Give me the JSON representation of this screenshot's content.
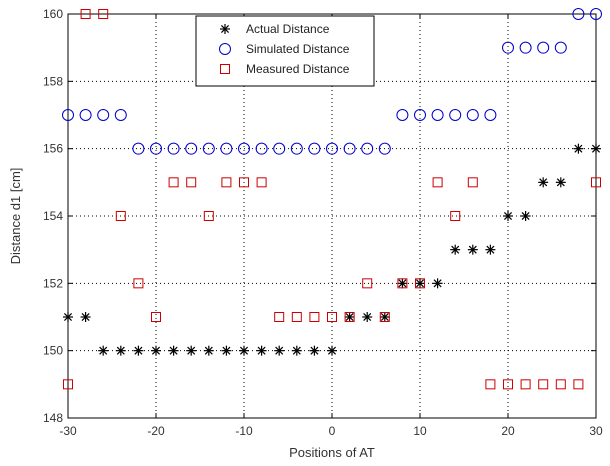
{
  "chart_data": {
    "type": "scatter",
    "xlabel": "Positions of AT",
    "ylabel": "Distance d1 [cm]",
    "xlim": [
      -30,
      30
    ],
    "ylim": [
      148,
      160
    ],
    "xticks": [
      -30,
      -20,
      -10,
      0,
      10,
      20,
      30
    ],
    "yticks": [
      148,
      150,
      152,
      154,
      156,
      158,
      160
    ],
    "grid": true,
    "legend_position": "top-center",
    "series": [
      {
        "name": "Actual Distance",
        "marker": "asterisk",
        "color": "#000000",
        "points": [
          [
            -30,
            151
          ],
          [
            -28,
            151
          ],
          [
            -26,
            150
          ],
          [
            -24,
            150
          ],
          [
            -22,
            150
          ],
          [
            -20,
            150
          ],
          [
            -18,
            150
          ],
          [
            -16,
            150
          ],
          [
            -14,
            150
          ],
          [
            -12,
            150
          ],
          [
            -10,
            150
          ],
          [
            -8,
            150
          ],
          [
            -6,
            150
          ],
          [
            -4,
            150
          ],
          [
            -2,
            150
          ],
          [
            0,
            150
          ],
          [
            2,
            151
          ],
          [
            4,
            151
          ],
          [
            6,
            151
          ],
          [
            8,
            152
          ],
          [
            10,
            152
          ],
          [
            12,
            152
          ],
          [
            14,
            153
          ],
          [
            16,
            153
          ],
          [
            18,
            153
          ],
          [
            20,
            154
          ],
          [
            22,
            154
          ],
          [
            24,
            155
          ],
          [
            26,
            155
          ],
          [
            28,
            156
          ],
          [
            30,
            156
          ]
        ]
      },
      {
        "name": "Simulated Distance",
        "marker": "circle",
        "color": "#0000cc",
        "points": [
          [
            -30,
            157
          ],
          [
            -28,
            157
          ],
          [
            -26,
            157
          ],
          [
            -24,
            157
          ],
          [
            -22,
            156
          ],
          [
            -20,
            156
          ],
          [
            -18,
            156
          ],
          [
            -16,
            156
          ],
          [
            -14,
            156
          ],
          [
            -12,
            156
          ],
          [
            -10,
            156
          ],
          [
            -8,
            156
          ],
          [
            -6,
            156
          ],
          [
            -4,
            156
          ],
          [
            -2,
            156
          ],
          [
            0,
            156
          ],
          [
            2,
            156
          ],
          [
            4,
            156
          ],
          [
            6,
            156
          ],
          [
            8,
            157
          ],
          [
            10,
            157
          ],
          [
            12,
            157
          ],
          [
            14,
            157
          ],
          [
            16,
            157
          ],
          [
            18,
            157
          ],
          [
            20,
            159
          ],
          [
            22,
            159
          ],
          [
            24,
            159
          ],
          [
            26,
            159
          ],
          [
            28,
            160
          ],
          [
            30,
            160
          ]
        ]
      },
      {
        "name": "Measured Distance",
        "marker": "square",
        "color": "#cc0000",
        "points": [
          [
            -30,
            149
          ],
          [
            -28,
            160
          ],
          [
            -26,
            160
          ],
          [
            -24,
            154
          ],
          [
            -22,
            152
          ],
          [
            -20,
            151
          ],
          [
            -18,
            155
          ],
          [
            -16,
            155
          ],
          [
            -14,
            154
          ],
          [
            -12,
            155
          ],
          [
            -10,
            155
          ],
          [
            -8,
            155
          ],
          [
            -6,
            151
          ],
          [
            -4,
            151
          ],
          [
            -2,
            151
          ],
          [
            0,
            151
          ],
          [
            2,
            151
          ],
          [
            4,
            152
          ],
          [
            6,
            151
          ],
          [
            8,
            152
          ],
          [
            10,
            152
          ],
          [
            12,
            155
          ],
          [
            14,
            154
          ],
          [
            16,
            155
          ],
          [
            18,
            149
          ],
          [
            20,
            149
          ],
          [
            22,
            149
          ],
          [
            24,
            149
          ],
          [
            26,
            149
          ],
          [
            28,
            149
          ],
          [
            30,
            155
          ]
        ]
      }
    ]
  }
}
